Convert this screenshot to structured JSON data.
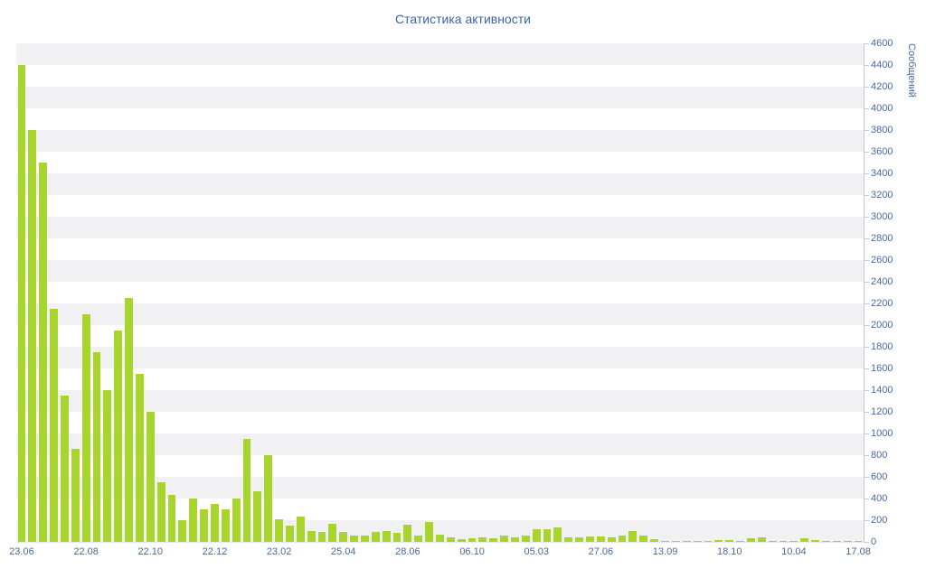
{
  "chart_data": {
    "type": "bar",
    "title": "Статистика активности",
    "xlabel": "",
    "ylabel": "Сообщений",
    "ylim": [
      0,
      4600
    ],
    "ytick_step": 200,
    "grid": "alternating-horizontal-bands",
    "legend": "none",
    "bar_color": "#a7d42d",
    "band_color": "#f1f1f4",
    "axis_color": "#c3c9d5",
    "text_color": "#46699c",
    "title_color": "#3d64a6",
    "label_every": 6,
    "x_labels": [
      "23.06",
      "22.08",
      "22.10",
      "22.12",
      "23.02",
      "25.04",
      "28.06",
      "06.10",
      "05.03",
      "27.06",
      "13.09",
      "18.10",
      "10.04",
      "17.08"
    ],
    "values": [
      4400,
      3800,
      3500,
      2150,
      1350,
      860,
      2100,
      1750,
      1400,
      1950,
      2250,
      1550,
      1200,
      550,
      430,
      200,
      400,
      300,
      350,
      300,
      400,
      950,
      470,
      800,
      210,
      150,
      230,
      100,
      90,
      170,
      90,
      55,
      60,
      90,
      100,
      80,
      160,
      60,
      185,
      70,
      45,
      25,
      30,
      40,
      30,
      55,
      40,
      60,
      120,
      115,
      130,
      40,
      40,
      50,
      50,
      40,
      55,
      100,
      60,
      25,
      10,
      8,
      10,
      8,
      10,
      15,
      20,
      10,
      30,
      40,
      10,
      5,
      8,
      30,
      20,
      12,
      8,
      8,
      8
    ]
  }
}
